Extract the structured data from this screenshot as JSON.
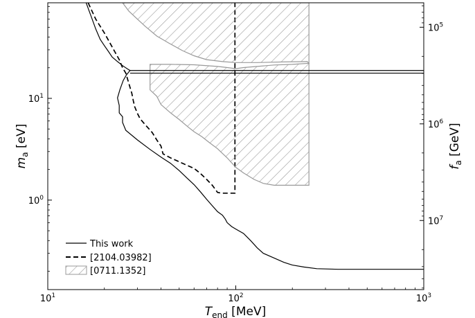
{
  "chart_data": {
    "type": "line",
    "xlabel": {
      "main": "T",
      "sub": "end",
      "unit": " [MeV]"
    },
    "ylabel": {
      "main": "m",
      "sub": "a",
      "unit": " [eV]"
    },
    "y2label": {
      "main": "f",
      "sub": "a",
      "unit": " [GeV]"
    },
    "x_scale": "log",
    "y_scale": "log",
    "xlim": [
      10,
      1000
    ],
    "ylim": [
      0.132,
      87
    ],
    "x_ticks": [
      {
        "value": 10,
        "base": "10",
        "exp": "1"
      },
      {
        "value": 100,
        "base": "10",
        "exp": "2"
      },
      {
        "value": 1000,
        "base": "10",
        "exp": "3"
      }
    ],
    "y_ticks": [
      {
        "value": 1,
        "base": "10",
        "exp": "0"
      },
      {
        "value": 10,
        "base": "10",
        "exp": "1"
      }
    ],
    "y2_ticks": [
      {
        "fraction": 0.0853,
        "base": "10",
        "exp": "5"
      },
      {
        "fraction": 0.4222,
        "base": "10",
        "exp": "6"
      },
      {
        "fraction": 0.7591,
        "base": "10",
        "exp": "7"
      }
    ],
    "grid": false,
    "legend_position": "bottom-left",
    "series": [
      {
        "name": "This work",
        "style": "solid",
        "color": "#000000",
        "points": [
          [
            16,
            87
          ],
          [
            17,
            64
          ],
          [
            18,
            48
          ],
          [
            19,
            38
          ],
          [
            20,
            33
          ],
          [
            21,
            29
          ],
          [
            22,
            25.5
          ],
          [
            23.5,
            23
          ],
          [
            25,
            21
          ],
          [
            26.5,
            19.5
          ],
          [
            27.4,
            18.8
          ],
          [
            26.2,
            17.0
          ],
          [
            25.2,
            15.0
          ],
          [
            24.2,
            12.2
          ],
          [
            23.5,
            10.1
          ],
          [
            24,
            8.5
          ],
          [
            24,
            7.2
          ],
          [
            25,
            6.6
          ],
          [
            25,
            5.8
          ],
          [
            26,
            4.85
          ],
          [
            30,
            3.9
          ],
          [
            35,
            3.15
          ],
          [
            40,
            2.65
          ],
          [
            45,
            2.3
          ],
          [
            50,
            1.95
          ],
          [
            55,
            1.65
          ],
          [
            60,
            1.42
          ],
          [
            65,
            1.2
          ],
          [
            70,
            1.02
          ],
          [
            75,
            0.88
          ],
          [
            80,
            0.77
          ],
          [
            85,
            0.71
          ],
          [
            88,
            0.65
          ],
          [
            90,
            0.6
          ],
          [
            95,
            0.55
          ],
          [
            100,
            0.52
          ],
          [
            110,
            0.47
          ],
          [
            120,
            0.4
          ],
          [
            130,
            0.34
          ],
          [
            140,
            0.3
          ],
          [
            160,
            0.27
          ],
          [
            180,
            0.245
          ],
          [
            200,
            0.23
          ],
          [
            230,
            0.22
          ],
          [
            270,
            0.212
          ],
          [
            350,
            0.209
          ],
          [
            1000,
            0.209
          ]
        ]
      },
      {
        "name": "[2104.03982]",
        "style": "dashed",
        "color": "#000000",
        "points": [
          [
            16.4,
            87
          ],
          [
            18,
            60
          ],
          [
            20,
            44
          ],
          [
            22,
            32
          ],
          [
            24,
            24
          ],
          [
            25,
            20
          ],
          [
            26,
            17.7
          ],
          [
            27,
            14
          ],
          [
            28,
            11.2
          ],
          [
            28.5,
            9.5
          ],
          [
            29,
            8.3
          ],
          [
            30,
            7.1
          ],
          [
            31,
            6.3
          ],
          [
            33,
            5.5
          ],
          [
            36,
            4.6
          ],
          [
            38,
            3.9
          ],
          [
            40,
            3.4
          ],
          [
            41,
            2.85
          ],
          [
            45,
            2.6
          ],
          [
            50,
            2.38
          ],
          [
            55,
            2.2
          ],
          [
            60,
            2.05
          ],
          [
            65,
            1.82
          ],
          [
            70,
            1.6
          ],
          [
            75,
            1.4
          ],
          [
            80,
            1.19
          ],
          [
            84,
            1.17
          ],
          [
            99,
            1.17
          ],
          [
            99,
            87
          ]
        ]
      },
      {
        "name": "[0711.1352]",
        "style": "hatched",
        "color": "#999999",
        "points": [
          [
            25,
            87
          ],
          [
            27,
            72
          ],
          [
            30,
            60
          ],
          [
            33,
            51
          ],
          [
            38,
            41
          ],
          [
            44,
            35
          ],
          [
            52,
            29.5
          ],
          [
            60,
            26.2
          ],
          [
            70,
            24.0
          ],
          [
            85,
            23.0
          ],
          [
            100,
            22.5
          ],
          [
            130,
            22.5
          ],
          [
            180,
            22.8
          ],
          [
            240,
            23
          ],
          [
            245,
            22.1
          ],
          [
            200,
            21.6
          ],
          [
            160,
            21.3
          ],
          [
            130,
            20.6
          ],
          [
            110,
            20.1
          ],
          [
            100,
            19.6
          ],
          [
            90,
            20.1
          ],
          [
            80,
            20.6
          ],
          [
            60,
            21.4
          ],
          [
            45,
            21.6
          ],
          [
            35,
            21.6
          ],
          [
            35,
            12.1
          ],
          [
            38,
            10.5
          ],
          [
            40,
            8.7
          ],
          [
            45,
            7.2
          ],
          [
            50,
            6.2
          ],
          [
            56,
            5.2
          ],
          [
            60,
            4.7
          ],
          [
            66,
            4.2
          ],
          [
            72,
            3.7
          ],
          [
            80,
            3.2
          ],
          [
            90,
            2.6
          ],
          [
            100,
            2.1
          ],
          [
            110,
            1.85
          ],
          [
            125,
            1.6
          ],
          [
            140,
            1.46
          ],
          [
            160,
            1.4
          ],
          [
            245,
            1.4
          ],
          [
            245,
            87
          ]
        ]
      }
    ],
    "horizontal_lines": [
      {
        "x_from": 27.4,
        "x_to": 1000,
        "y": 18.8
      },
      {
        "x_from": 27.4,
        "x_to": 1000,
        "y": 17.7
      }
    ]
  }
}
